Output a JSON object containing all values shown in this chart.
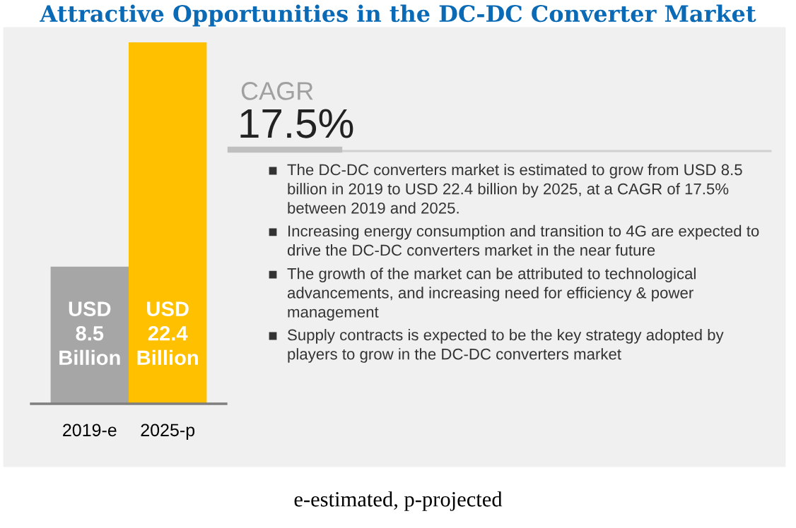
{
  "chart_data": [
    {
      "type": "bar",
      "title": "Attractive Opportunities in the DC-DC Converter Market",
      "categories": [
        "2019-e",
        "2025-p"
      ],
      "values": [
        8.5,
        22.4
      ],
      "colors": [
        "#a6a6a6",
        "#ffc000"
      ],
      "value_labels": [
        "USD\n8.5\nBillion",
        "USD\n22.4\nBillion"
      ],
      "annotations": [
        "e-estimated, p-projected"
      ]
    },
    {
      "type": "other",
      "title": "CAGR",
      "subtitle": "17.5%",
      "annotations": [
        "The DC-DC converters market is estimated to grow from USD 8.5 billion in 2019 to USD 22.4 billion by 2025, at a CAGR of 17.5% between 2019 and 2025.",
        "Increasing energy consumption and transition to 4G are expected to drive the DC-DC converters market in the near future",
        "The growth of the market can be attributed to technological advancements, and increasing need for efficiency & power management",
        "Supply contracts is expected to be the key strategy adopted by players to grow in the DC-DC converters market"
      ]
    }
  ]
}
